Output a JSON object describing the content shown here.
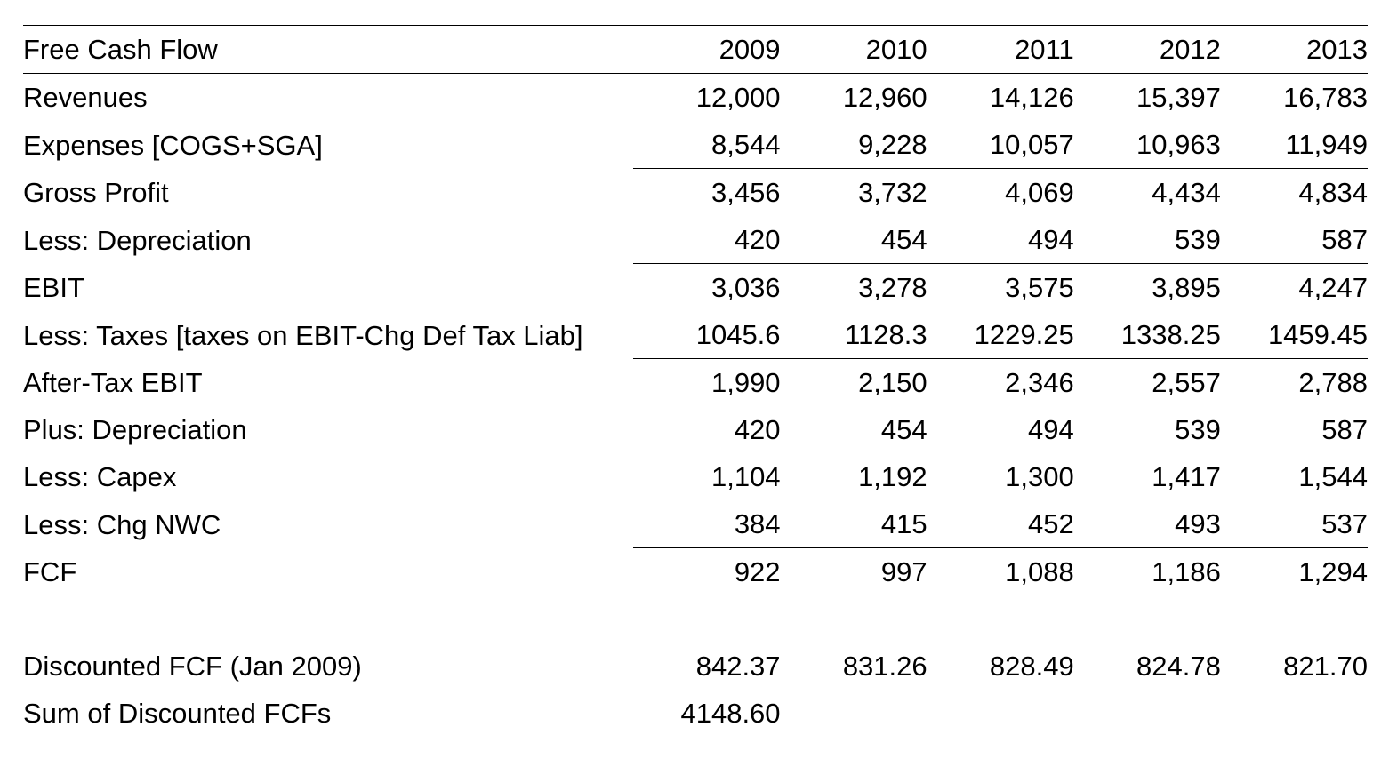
{
  "table": {
    "header": {
      "label": "Free Cash Flow",
      "years": [
        "2009",
        "2010",
        "2011",
        "2012",
        "2013"
      ]
    },
    "rows": [
      {
        "label": "Revenues",
        "values": [
          "12,000",
          "12,960",
          "14,126",
          "15,397",
          "16,783"
        ],
        "rule_below": false
      },
      {
        "label": "Expenses [COGS+SGA]",
        "values": [
          "8,544",
          "9,228",
          "10,057",
          "10,963",
          "11,949"
        ],
        "rule_below": true
      },
      {
        "label": "Gross Profit",
        "values": [
          "3,456",
          "3,732",
          "4,069",
          "4,434",
          "4,834"
        ],
        "rule_below": false
      },
      {
        "label": "Less: Depreciation",
        "values": [
          "420",
          "454",
          "494",
          "539",
          "587"
        ],
        "rule_below": true
      },
      {
        "label": "EBIT",
        "values": [
          "3,036",
          "3,278",
          "3,575",
          "3,895",
          "4,247"
        ],
        "rule_below": false
      },
      {
        "label": "Less: Taxes [taxes on EBIT-Chg Def Tax Liab]",
        "values": [
          "1045.6",
          "1128.3",
          "1229.25",
          "1338.25",
          "1459.45"
        ],
        "rule_below": true
      },
      {
        "label": "After-Tax EBIT",
        "values": [
          "1,990",
          "2,150",
          "2,346",
          "2,557",
          "2,788"
        ],
        "rule_below": false
      },
      {
        "label": "Plus: Depreciation",
        "values": [
          "420",
          "454",
          "494",
          "539",
          "587"
        ],
        "rule_below": false
      },
      {
        "label": "Less: Capex",
        "values": [
          "1,104",
          "1,192",
          "1,300",
          "1,417",
          "1,544"
        ],
        "rule_below": false
      },
      {
        "label": "Less: Chg NWC",
        "values": [
          "384",
          "415",
          "452",
          "493",
          "537"
        ],
        "rule_below": true
      },
      {
        "label": "FCF",
        "values": [
          "922",
          "997",
          "1,088",
          "1,186",
          "1,294"
        ],
        "rule_below": false
      }
    ],
    "discounted": {
      "label": "Discounted FCF (Jan 2009)",
      "values": [
        "842.37",
        "831.26",
        "828.49",
        "824.78",
        "821.70"
      ]
    },
    "sum": {
      "label": "Sum of Discounted FCFs",
      "value": "4148.60"
    }
  }
}
